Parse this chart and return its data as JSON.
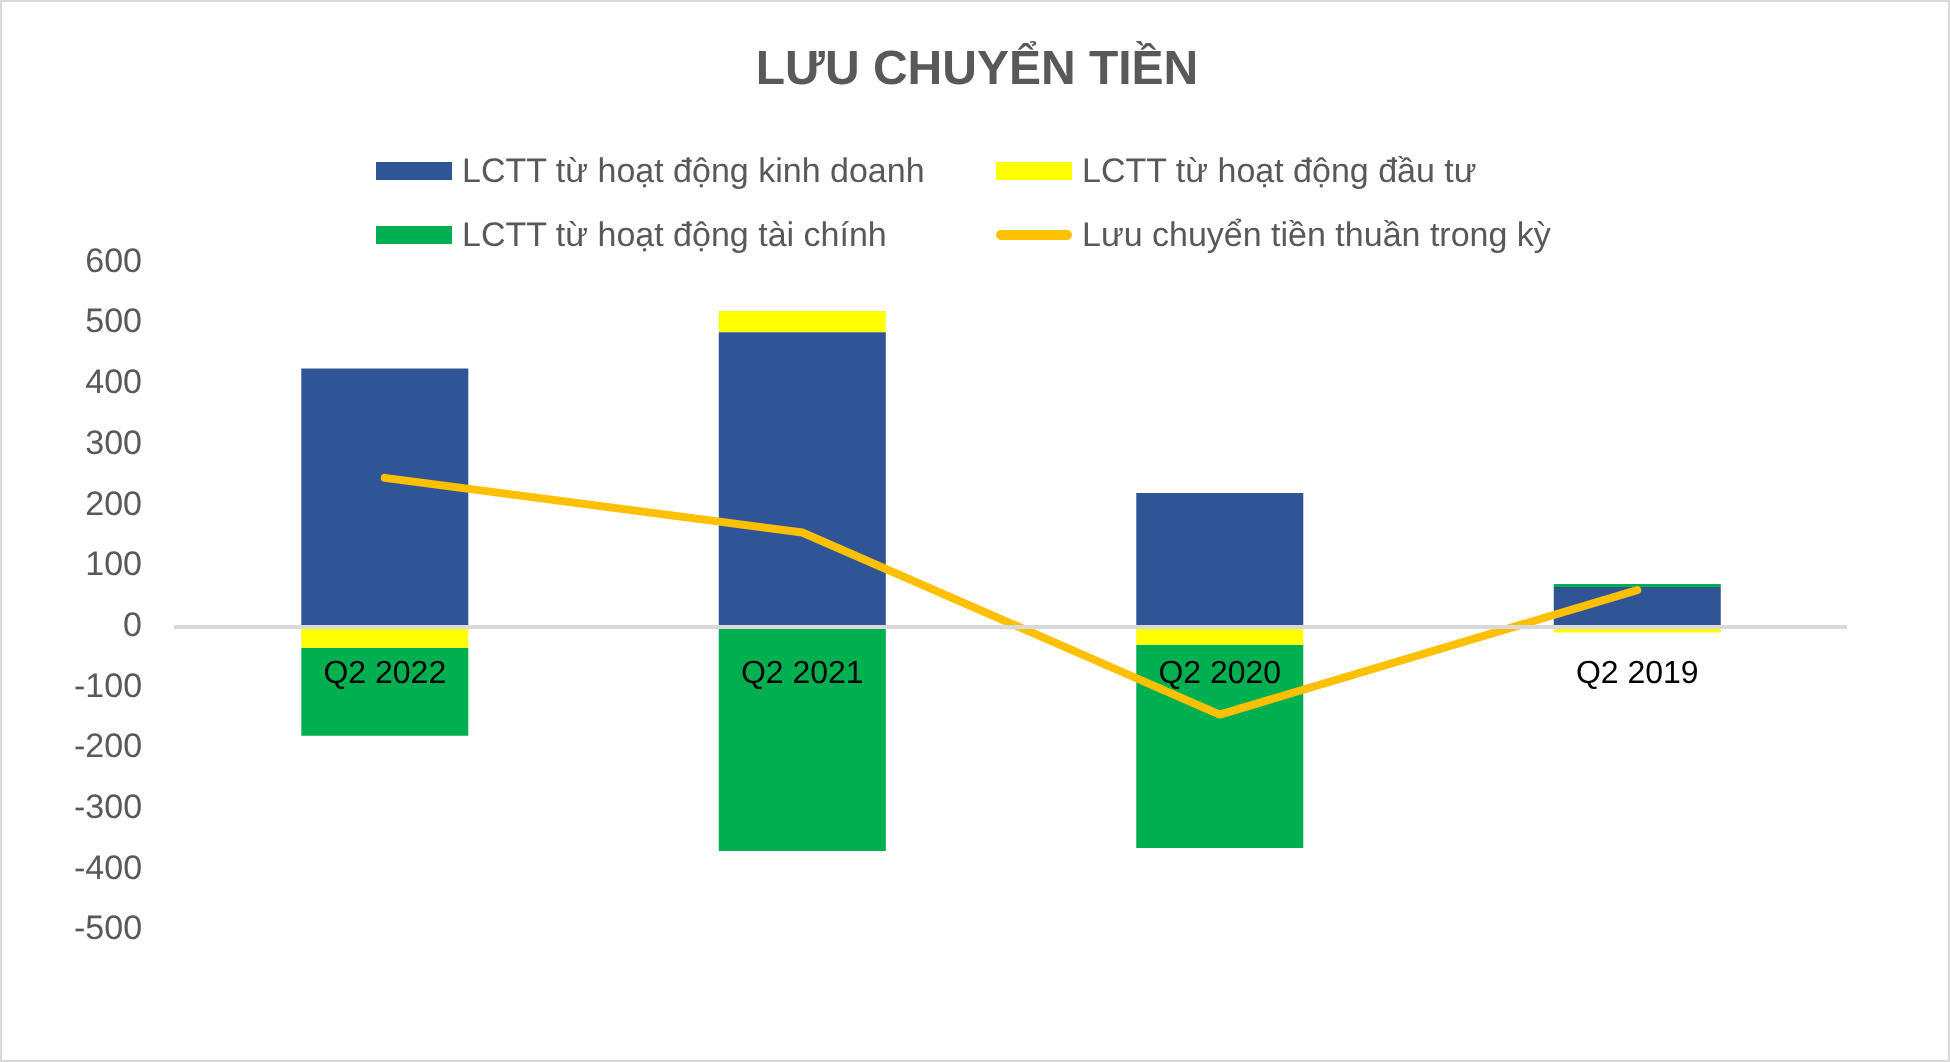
{
  "chart_data": {
    "type": "bar",
    "title": "LƯU CHUYỂN TIỀN",
    "categories": [
      "Q2 2022",
      "Q2 2021",
      "Q2 2020",
      "Q2 2019"
    ],
    "stacked": true,
    "series": [
      {
        "name": "LCTT từ hoạt động kinh doanh",
        "color": "#2f5597",
        "values": [
          425,
          485,
          220,
          65
        ]
      },
      {
        "name": "LCTT từ hoạt động đầu tư",
        "color": "#ffff00",
        "values": [
          -35,
          35,
          -30,
          -10
        ]
      },
      {
        "name": "LCTT từ hoạt động tài chính",
        "color": "#00b050",
        "values": [
          -145,
          -370,
          -335,
          5
        ]
      },
      {
        "name": "Lưu chuyển tiền thuần trong kỳ",
        "type": "line",
        "color": "#ffc000",
        "values": [
          245,
          155,
          -145,
          60
        ]
      }
    ],
    "ylim": [
      -500,
      600
    ],
    "yticks": [
      -500,
      -400,
      -300,
      -200,
      -100,
      0,
      100,
      200,
      300,
      400,
      500,
      600
    ],
    "legend": "top",
    "marker": "none"
  }
}
